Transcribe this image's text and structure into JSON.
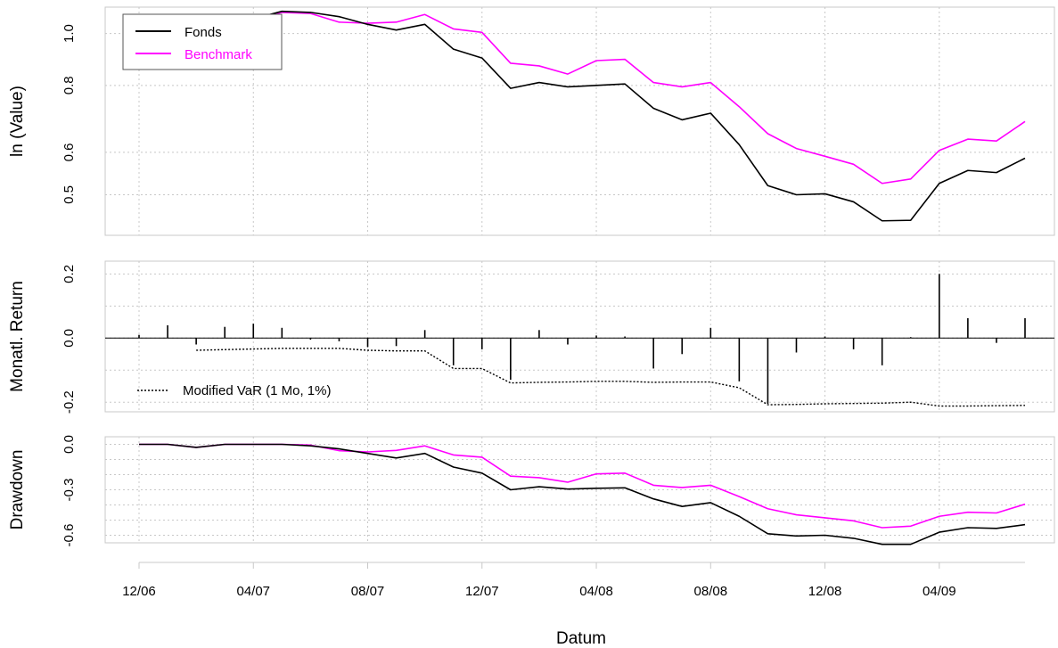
{
  "chart_data": {
    "type": "line",
    "x_label": "Datum",
    "dates": [
      "12/06",
      "01/07",
      "02/07",
      "03/07",
      "04/07",
      "05/07",
      "06/07",
      "07/07",
      "08/07",
      "09/07",
      "10/07",
      "11/07",
      "12/07",
      "01/08",
      "02/08",
      "03/08",
      "04/08",
      "05/08",
      "06/08",
      "07/08",
      "08/08",
      "09/08",
      "10/08",
      "11/08",
      "12/08",
      "01/09",
      "02/09",
      "03/09",
      "04/09",
      "05/09",
      "06/09",
      "07/09"
    ],
    "x_tick_labels": [
      "12/06",
      "04/07",
      "08/07",
      "12/07",
      "04/08",
      "08/08",
      "12/08",
      "04/09"
    ],
    "x_tick_indices": [
      0,
      4,
      8,
      12,
      16,
      20,
      24,
      28
    ],
    "panels": [
      {
        "id": "value",
        "type": "line",
        "ylabel": "ln (Value)",
        "ylim": [
          0.42,
          1.12
        ],
        "y_ticks": [
          0.5,
          0.6,
          0.8,
          1.0
        ],
        "y_tick_labels": [
          "0.5",
          "0.6",
          "0.8",
          "1.0"
        ],
        "log_scale": true,
        "legend_position": "top-left",
        "series": [
          {
            "name": "Fonds",
            "color": "#000000",
            "values": [
              1.0,
              1.01,
              0.985,
              1.02,
              1.065,
              1.1,
              1.095,
              1.075,
              1.04,
              1.015,
              1.04,
              0.935,
              0.9,
              0.79,
              0.81,
              0.795,
              0.8,
              0.805,
              0.725,
              0.69,
              0.71,
              0.62,
              0.52,
              0.5,
              0.502,
              0.485,
              0.447,
              0.448,
              0.525,
              0.555,
              0.55,
              0.585
            ]
          },
          {
            "name": "Benchmark",
            "color": "#ff00ff",
            "values": [
              1.0,
              1.01,
              0.99,
              1.02,
              1.06,
              1.095,
              1.09,
              1.05,
              1.045,
              1.05,
              1.085,
              1.02,
              1.005,
              0.88,
              0.87,
              0.84,
              0.89,
              0.895,
              0.81,
              0.795,
              0.81,
              0.73,
              0.65,
              0.61,
              0.59,
              0.57,
              0.525,
              0.535,
              0.605,
              0.635,
              0.63,
              0.685
            ]
          }
        ]
      },
      {
        "id": "returns",
        "type": "bar",
        "ylabel": "Monatl. Return",
        "ylim": [
          -0.23,
          0.24
        ],
        "y_ticks": [
          -0.2,
          -0.1,
          0.0,
          0.1,
          0.2
        ],
        "y_tick_labels": [
          "-0.2",
          "",
          "0.0",
          "",
          "0.2"
        ],
        "series": [
          {
            "name": "Fonds",
            "color": "#000000",
            "values": [
              0.01,
              0.04,
              -0.02,
              0.035,
              0.045,
              0.032,
              -0.005,
              -0.01,
              -0.028,
              -0.025,
              0.025,
              -0.085,
              -0.035,
              -0.13,
              0.025,
              -0.02,
              0.008,
              0.005,
              -0.095,
              -0.05,
              0.032,
              -0.135,
              -0.205,
              -0.045,
              0.005,
              -0.035,
              -0.085,
              0.003,
              0.2,
              0.062,
              -0.015,
              0.062
            ]
          },
          {
            "name": "Modified VaR (1 Mo, 1%)",
            "color": "#000000",
            "dashed": true,
            "start_index": 2,
            "values": [
              -0.038,
              -0.036,
              -0.034,
              -0.032,
              -0.032,
              -0.032,
              -0.038,
              -0.04,
              -0.04,
              -0.095,
              -0.095,
              -0.14,
              -0.138,
              -0.137,
              -0.135,
              -0.135,
              -0.138,
              -0.137,
              -0.137,
              -0.155,
              -0.208,
              -0.207,
              -0.205,
              -0.204,
              -0.203,
              -0.2,
              -0.212,
              -0.212,
              -0.211,
              -0.21
            ]
          }
        ]
      },
      {
        "id": "drawdown",
        "type": "line",
        "ylabel": "Drawdown",
        "ylim": [
          -0.65,
          0.05
        ],
        "y_ticks": [
          -0.6,
          -0.5,
          -0.4,
          -0.3,
          -0.2,
          -0.1,
          0.0
        ],
        "y_tick_labels": [
          "-0.6",
          "",
          "",
          "-0.3",
          "",
          "",
          "0.0"
        ],
        "series": [
          {
            "name": "Fonds",
            "color": "#000000",
            "values": [
              0.0,
              0.0,
              -0.02,
              0.0,
              0.0,
              0.0,
              -0.01,
              -0.03,
              -0.06,
              -0.09,
              -0.06,
              -0.15,
              -0.19,
              -0.3,
              -0.28,
              -0.295,
              -0.29,
              -0.287,
              -0.36,
              -0.41,
              -0.385,
              -0.475,
              -0.59,
              -0.605,
              -0.6,
              -0.62,
              -0.66,
              -0.66,
              -0.58,
              -0.55,
              -0.555,
              -0.53
            ]
          },
          {
            "name": "Benchmark",
            "color": "#ff00ff",
            "values": [
              0.0,
              0.0,
              -0.02,
              0.0,
              0.0,
              0.0,
              -0.005,
              -0.042,
              -0.05,
              -0.04,
              -0.01,
              -0.07,
              -0.085,
              -0.21,
              -0.22,
              -0.25,
              -0.195,
              -0.19,
              -0.27,
              -0.285,
              -0.27,
              -0.345,
              -0.425,
              -0.465,
              -0.485,
              -0.505,
              -0.55,
              -0.54,
              -0.475,
              -0.448,
              -0.453,
              -0.395
            ]
          }
        ]
      }
    ]
  }
}
